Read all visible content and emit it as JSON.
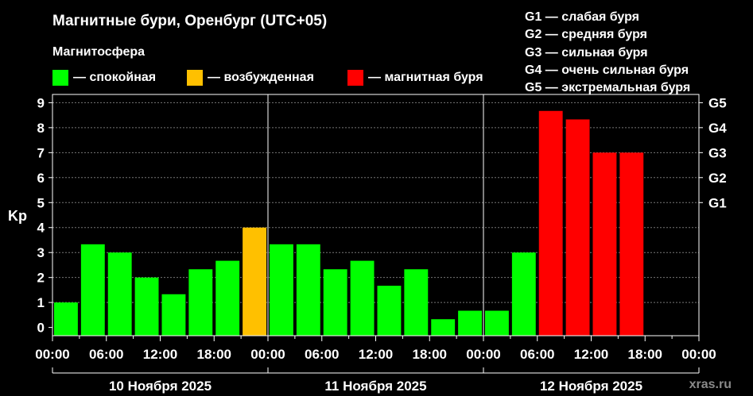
{
  "title": "Магнитные бури, Оренбург (UTC+05)",
  "subtitle": "Магнитосфера",
  "legend": [
    {
      "label": "— спокойная",
      "color": "#00ff00"
    },
    {
      "label": "— возбужденная",
      "color": "#ffc000"
    },
    {
      "label": "— магнитная буря",
      "color": "#ff0000"
    }
  ],
  "g_scale": [
    "G1 — слабая буря",
    "G2 — средняя буря",
    "G3 — сильная буря",
    "G4 — очень сильная буря",
    "G5 — экстремальная буря"
  ],
  "watermark": "xras.ru",
  "chart_data": {
    "type": "bar",
    "ylabel": "Kp",
    "ylim": [
      -0.33,
      9.33
    ],
    "yticks": [
      "0",
      "1",
      "2",
      "3",
      "4",
      "5",
      "6",
      "7",
      "8",
      "9"
    ],
    "right_ticks": [
      {
        "label": "G1",
        "value": 5
      },
      {
        "label": "G2",
        "value": 6
      },
      {
        "label": "G3",
        "value": 7
      },
      {
        "label": "G4",
        "value": 8
      },
      {
        "label": "G5",
        "value": 9
      }
    ],
    "xtick_labels": [
      "00:00",
      "06:00",
      "12:00",
      "18:00",
      "00:00",
      "06:00",
      "12:00",
      "18:00",
      "00:00",
      "06:00",
      "12:00",
      "18:00",
      "00:00"
    ],
    "days": [
      "10 Ноября 2025",
      "11 Ноября 2025",
      "12 Ноября 2025"
    ],
    "interval_hours": 3,
    "values": [
      1.0,
      3.33,
      3.0,
      2.0,
      1.33,
      2.33,
      2.67,
      4.0,
      3.33,
      3.33,
      2.33,
      2.67,
      1.67,
      2.33,
      0.33,
      0.67,
      0.67,
      3.0,
      8.67,
      8.33,
      7.0,
      7.0
    ],
    "colors": {
      "quiet": "#00ff00",
      "active": "#ffc000",
      "storm": "#ff0000"
    },
    "grid": true
  }
}
